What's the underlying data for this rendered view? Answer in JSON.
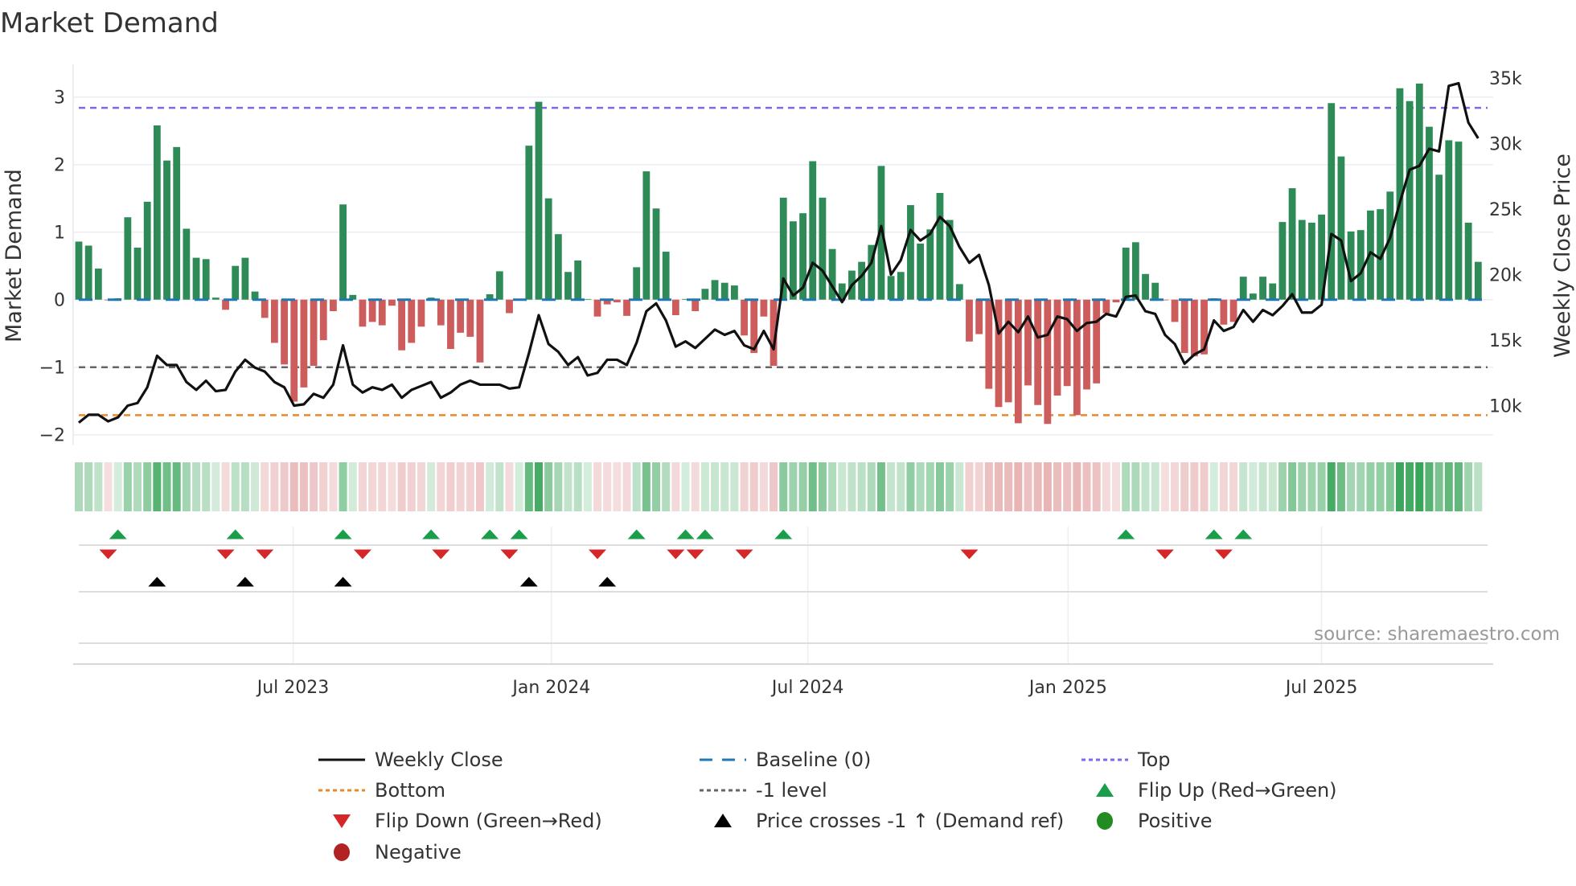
{
  "chart_data": {
    "type": "bar",
    "title": "Market Demand",
    "ylabel": "Market Demand",
    "y2label": "Weekly Close Price",
    "ylim": [
      -2.25,
      3.45
    ],
    "y2lim": [
      6500,
      36500
    ],
    "yticks": [
      3,
      2,
      1,
      0,
      -1,
      -2
    ],
    "ytick_labels": [
      "3",
      "2",
      "1",
      "0",
      "−1",
      "−2"
    ],
    "y2ticks": [
      35000,
      30000,
      25000,
      20000,
      15000,
      10000
    ],
    "y2tick_labels": [
      "35k",
      "30k",
      "25k",
      "20k",
      "15k",
      "10k"
    ],
    "xticks": [
      {
        "week": 22.9,
        "label": "Jul 2023"
      },
      {
        "week": 49.3,
        "label": "Jan 2024"
      },
      {
        "week": 75.5,
        "label": "Jul 2024"
      },
      {
        "week": 102.1,
        "label": "Jan 2025"
      },
      {
        "week": 128.0,
        "label": "Jul 2025"
      }
    ],
    "reference_lines": {
      "top": 2.84,
      "bottom": -1.71,
      "minus_one": -1,
      "baseline": 0
    },
    "demand": [
      0.86,
      0.8,
      0.46,
      -0.01,
      0.02,
      1.22,
      0.77,
      1.45,
      2.58,
      2.06,
      2.26,
      1.05,
      0.62,
      0.6,
      0.03,
      -0.15,
      0.5,
      0.62,
      0.12,
      -0.27,
      -0.64,
      -0.96,
      -1.51,
      -1.3,
      -0.98,
      -0.6,
      -0.17,
      1.41,
      0.07,
      -0.4,
      -0.33,
      -0.38,
      -0.09,
      -0.75,
      -0.64,
      -0.4,
      0.03,
      -0.38,
      -0.73,
      -0.49,
      -0.55,
      -0.93,
      0.08,
      0.42,
      -0.2,
      0.01,
      2.28,
      2.93,
      1.5,
      0.97,
      0.41,
      0.58,
      0.01,
      -0.25,
      -0.07,
      -0.04,
      -0.24,
      0.48,
      1.9,
      1.35,
      0.71,
      -0.23,
      0.01,
      -0.17,
      0.16,
      0.29,
      0.25,
      0.21,
      -0.53,
      -0.79,
      -0.25,
      -0.98,
      1.51,
      1.16,
      1.28,
      2.05,
      1.51,
      0.75,
      0.24,
      0.43,
      0.56,
      0.81,
      1.98,
      0.35,
      0.41,
      1.4,
      0.83,
      1.04,
      1.58,
      1.18,
      0.23,
      -0.62,
      -0.51,
      -1.32,
      -1.59,
      -1.52,
      -1.83,
      -1.27,
      -1.56,
      -1.84,
      -1.42,
      -1.28,
      -1.71,
      -1.33,
      -1.24,
      -0.2,
      -0.04,
      0.77,
      0.85,
      0.38,
      0.25,
      -0.01,
      -0.33,
      -0.79,
      -0.84,
      -0.81,
      0.02,
      -0.37,
      -0.33,
      0.34,
      0.09,
      0.34,
      0.24,
      1.15,
      1.65,
      1.18,
      1.14,
      1.26,
      2.91,
      2.12,
      1.01,
      1.03,
      1.32,
      1.34,
      1.6,
      3.13,
      2.94,
      3.2,
      2.56,
      1.85,
      2.36,
      2.34,
      1.14,
      0.56
    ],
    "weekly_close_k": [
      8.7,
      9.3,
      9.3,
      8.8,
      9.1,
      10.0,
      10.2,
      11.4,
      13.8,
      13.1,
      13.1,
      11.8,
      11.2,
      11.9,
      11.1,
      11.2,
      12.6,
      13.5,
      12.9,
      12.6,
      11.8,
      11.4,
      10.0,
      10.1,
      10.9,
      10.6,
      11.6,
      14.6,
      11.6,
      11.0,
      11.4,
      11.2,
      11.6,
      10.6,
      11.2,
      11.5,
      11.8,
      10.6,
      11.0,
      11.6,
      11.9,
      11.6,
      11.6,
      11.6,
      11.3,
      11.4,
      14.0,
      16.9,
      14.7,
      14.1,
      13.1,
      13.7,
      12.3,
      12.5,
      13.5,
      13.5,
      13.1,
      14.8,
      17.2,
      17.8,
      16.5,
      14.5,
      14.9,
      14.4,
      15.1,
      15.8,
      15.4,
      15.7,
      14.6,
      14.3,
      15.7,
      14.3,
      19.7,
      18.4,
      19.0,
      20.9,
      20.3,
      19.1,
      17.9,
      19.2,
      19.9,
      20.9,
      23.7,
      20.0,
      21.1,
      23.4,
      22.6,
      23.1,
      24.4,
      23.7,
      22.1,
      20.9,
      21.5,
      19.2,
      15.5,
      16.4,
      15.6,
      16.8,
      15.2,
      15.4,
      16.8,
      16.6,
      15.7,
      16.3,
      16.4,
      17.0,
      16.8,
      18.3,
      18.4,
      17.2,
      17.0,
      15.4,
      14.7,
      13.2,
      13.9,
      14.3,
      16.5,
      15.7,
      16.0,
      17.3,
      16.4,
      17.3,
      16.9,
      17.6,
      18.5,
      17.1,
      17.1,
      17.7,
      23.1,
      22.6,
      19.5,
      20.1,
      21.7,
      21.2,
      22.8,
      25.5,
      28.0,
      28.3,
      29.6,
      29.4,
      34.4,
      34.6,
      31.6,
      30.4
    ],
    "flip_up_weeks": [
      5,
      17,
      28,
      37,
      43,
      46,
      58,
      63,
      65,
      73,
      108,
      117,
      120
    ],
    "flip_down_weeks": [
      4,
      16,
      20,
      30,
      38,
      45,
      54,
      62,
      64,
      69,
      92,
      112,
      118
    ],
    "price_cross_weeks": [
      9,
      18,
      28,
      47,
      55
    ],
    "legend_placement": "bottom-center",
    "legend": [
      {
        "key": "weekly_close",
        "label": "Weekly Close"
      },
      {
        "key": "baseline",
        "label": "Baseline (0)"
      },
      {
        "key": "top",
        "label": "Top"
      },
      {
        "key": "bottom",
        "label": "Bottom"
      },
      {
        "key": "minus_one",
        "label": "-1 level"
      },
      {
        "key": "flip_up",
        "label": "Flip Up (Red→Green)"
      },
      {
        "key": "flip_down",
        "label": "Flip Down (Green→Red)"
      },
      {
        "key": "price_cross",
        "label": "Price crosses -1 ↑ (Demand ref)"
      },
      {
        "key": "positive",
        "label": "Positive"
      },
      {
        "key": "negative",
        "label": "Negative"
      }
    ],
    "source": "source: sharemaestro.com"
  },
  "colors": {
    "positive": "#2e8b57",
    "negative": "#cd5c5c",
    "price": "#111111",
    "baseline": "#1f77b4",
    "top": "#7b68ee",
    "bottom": "#e8892b",
    "minus_one": "#666666",
    "flip_up": "#1a9e4a",
    "flip_down": "#d62728",
    "cross": "#000000",
    "positive_dot": "#228b22",
    "negative_dot": "#b22222"
  }
}
